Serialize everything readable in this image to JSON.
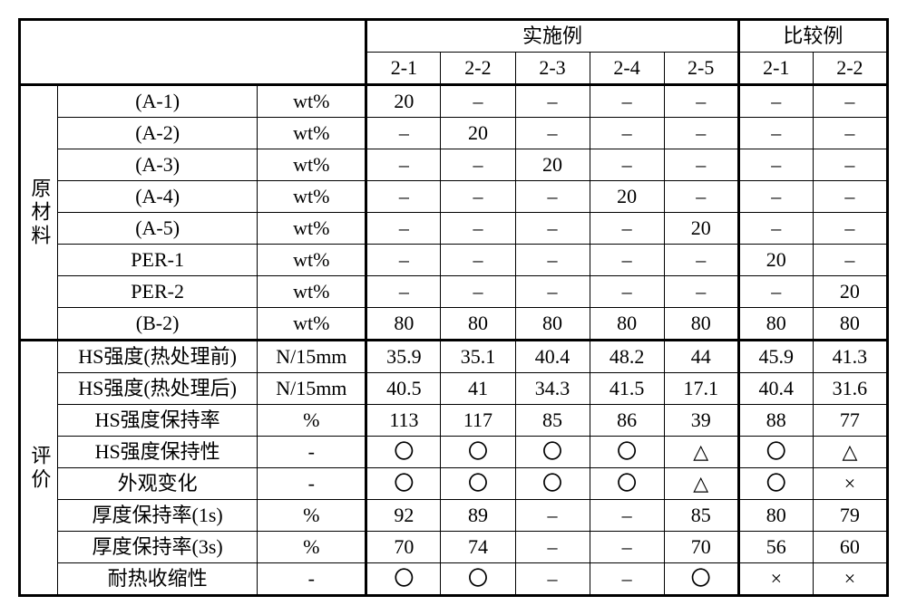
{
  "headers": {
    "group1": "实施例",
    "group2": "比较例",
    "cols": [
      "2-1",
      "2-2",
      "2-3",
      "2-4",
      "2-5",
      "2-1",
      "2-2"
    ]
  },
  "sections": {
    "materials": "原材料",
    "evaluation": "评价"
  },
  "unit": {
    "wt": "wt%",
    "n15": "N/15mm",
    "pct": "%",
    "dash": "-"
  },
  "sym": {
    "dash": "–",
    "circle": "〇",
    "tri": "△",
    "cross": "×"
  },
  "mat": {
    "r0": {
      "p": "(A-1)",
      "v": [
        "20",
        "–",
        "–",
        "–",
        "–",
        "–",
        "–"
      ]
    },
    "r1": {
      "p": "(A-2)",
      "v": [
        "–",
        "20",
        "–",
        "–",
        "–",
        "–",
        "–"
      ]
    },
    "r2": {
      "p": "(A-3)",
      "v": [
        "–",
        "–",
        "20",
        "–",
        "–",
        "–",
        "–"
      ]
    },
    "r3": {
      "p": "(A-4)",
      "v": [
        "–",
        "–",
        "–",
        "20",
        "–",
        "–",
        "–"
      ]
    },
    "r4": {
      "p": "(A-5)",
      "v": [
        "–",
        "–",
        "–",
        "–",
        "20",
        "–",
        "–"
      ]
    },
    "r5": {
      "p": "PER-1",
      "v": [
        "–",
        "–",
        "–",
        "–",
        "–",
        "20",
        "–"
      ]
    },
    "r6": {
      "p": "PER-2",
      "v": [
        "–",
        "–",
        "–",
        "–",
        "–",
        "–",
        "20"
      ]
    },
    "r7": {
      "p": "(B-2)",
      "v": [
        "80",
        "80",
        "80",
        "80",
        "80",
        "80",
        "80"
      ]
    }
  },
  "eval": {
    "r0": {
      "p": "HS强度(热处理前)",
      "u": "N/15mm",
      "v": [
        "35.9",
        "35.1",
        "40.4",
        "48.2",
        "44",
        "45.9",
        "41.3"
      ]
    },
    "r1": {
      "p": "HS强度(热处理后)",
      "u": "N/15mm",
      "v": [
        "40.5",
        "41",
        "34.3",
        "41.5",
        "17.1",
        "40.4",
        "31.6"
      ]
    },
    "r2": {
      "p": "HS强度保持率",
      "u": "%",
      "v": [
        "113",
        "117",
        "85",
        "86",
        "39",
        "88",
        "77"
      ]
    },
    "r3": {
      "p": "HS强度保持性",
      "u": "-",
      "v": [
        "〇",
        "〇",
        "〇",
        "〇",
        "△",
        "〇",
        "△"
      ]
    },
    "r4": {
      "p": "外观变化",
      "u": "-",
      "v": [
        "〇",
        "〇",
        "〇",
        "〇",
        "△",
        "〇",
        "×"
      ]
    },
    "r5": {
      "p": "厚度保持率(1s)",
      "u": "%",
      "v": [
        "92",
        "89",
        "–",
        "–",
        "85",
        "80",
        "79"
      ]
    },
    "r6": {
      "p": "厚度保持率(3s)",
      "u": "%",
      "v": [
        "70",
        "74",
        "–",
        "–",
        "70",
        "56",
        "60"
      ]
    },
    "r7": {
      "p": "耐热收缩性",
      "u": "-",
      "v": [
        "〇",
        "〇",
        "–",
        "–",
        "〇",
        "×",
        "×"
      ]
    }
  },
  "style": {
    "border_color": "#000000",
    "bg": "#ffffff",
    "font": "SimSun",
    "cell_fontsize": 22
  }
}
